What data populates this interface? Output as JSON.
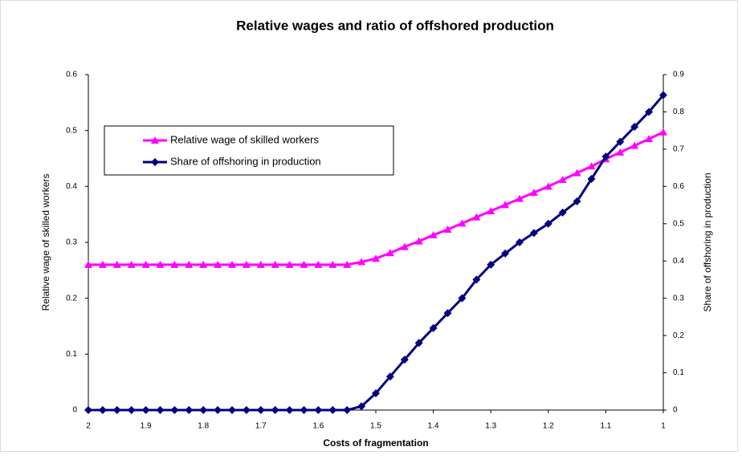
{
  "chart_data": {
    "type": "line",
    "title": "Relative wages and ratio of offshored production",
    "xlabel": "Costs of fragmentation",
    "ylabel": "Relative wage of skilled workers",
    "y2label": "Share of offshoring in production",
    "x": [
      2,
      1.975,
      1.95,
      1.925,
      1.9,
      1.875,
      1.85,
      1.825,
      1.8,
      1.775,
      1.75,
      1.725,
      1.7,
      1.675,
      1.65,
      1.625,
      1.6,
      1.575,
      1.55,
      1.525,
      1.5,
      1.475,
      1.45,
      1.425,
      1.4,
      1.375,
      1.35,
      1.325,
      1.3,
      1.275,
      1.25,
      1.225,
      1.2,
      1.175,
      1.15,
      1.125,
      1.1,
      1.075,
      1.05,
      1.025,
      1
    ],
    "series": [
      {
        "name": "Relative wage of skilled workers",
        "color": "#ff00ff",
        "marker": "triangle",
        "values": [
          0.26,
          0.26,
          0.26,
          0.26,
          0.26,
          0.26,
          0.26,
          0.26,
          0.26,
          0.26,
          0.26,
          0.26,
          0.26,
          0.26,
          0.26,
          0.26,
          0.26,
          0.26,
          0.26,
          0.265,
          0.271,
          0.281,
          0.292,
          0.302,
          0.313,
          0.323,
          0.334,
          0.345,
          0.356,
          0.367,
          0.378,
          0.389,
          0.4,
          0.412,
          0.424,
          0.436,
          0.449,
          0.461,
          0.473,
          0.485,
          0.497
        ]
      },
      {
        "name": "Share of offshoring in production",
        "color": "#000080",
        "marker": "diamond",
        "axis": "y2",
        "values": [
          0,
          0,
          0,
          0,
          0,
          0,
          0,
          0,
          0,
          0,
          0,
          0,
          0,
          0,
          0,
          0,
          0,
          0,
          0,
          0.01,
          0.045,
          0.09,
          0.135,
          0.18,
          0.22,
          0.26,
          0.3,
          0.35,
          0.39,
          0.42,
          0.45,
          0.475,
          0.5,
          0.53,
          0.56,
          0.62,
          0.68,
          0.72,
          0.76,
          0.8,
          0.845
        ]
      }
    ],
    "xlim": [
      2,
      1
    ],
    "xticks": [
      2,
      1.9,
      1.8,
      1.7,
      1.6,
      1.5,
      1.4,
      1.3,
      1.2,
      1.1,
      1
    ],
    "ylim": [
      0,
      0.6
    ],
    "yticks": [
      0,
      0.1,
      0.2,
      0.3,
      0.4,
      0.5,
      0.6
    ],
    "y2lim": [
      0,
      0.9
    ],
    "y2ticks": [
      0,
      0.1,
      0.2,
      0.3,
      0.4,
      0.5,
      0.6,
      0.7,
      0.8,
      0.9
    ],
    "legend": "upper left"
  }
}
